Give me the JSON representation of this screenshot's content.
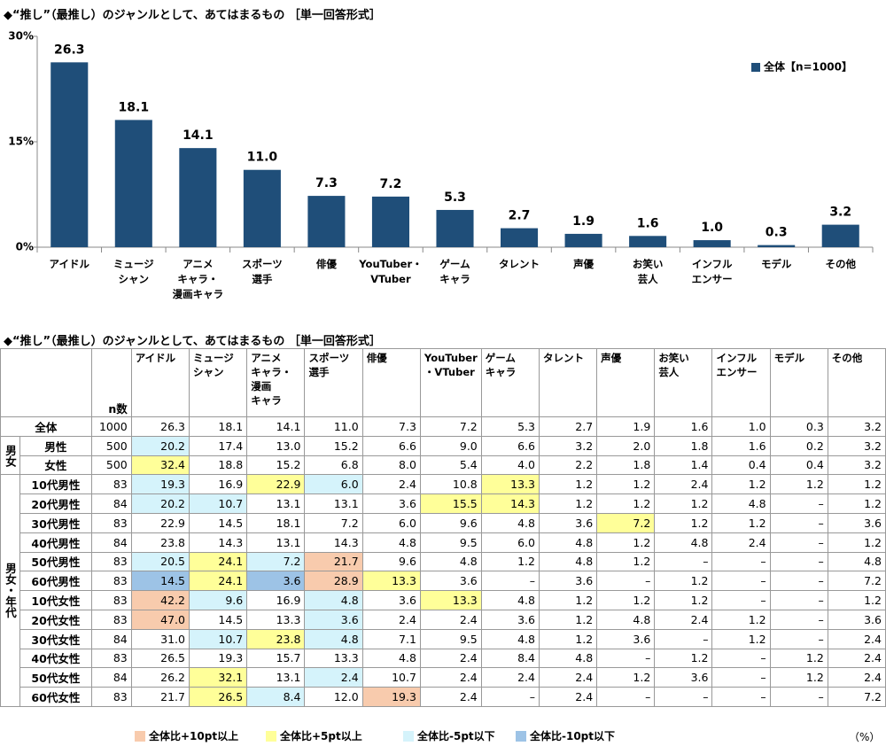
{
  "chart_data": {
    "type": "bar",
    "title": "◆“推し”（最推し）のジャンルとして、あてはまるもの ［単一回答形式］",
    "categories": [
      "アイドル",
      "ミュージ\nシャン",
      "アニメ\nキャラ・\n漫画キャラ",
      "スポーツ\n選手",
      "俳優",
      "YouTuber・\nVTuber",
      "ゲーム\nキャラ",
      "タレント",
      "声優",
      "お笑い\n芸人",
      "インフル\nエンサー",
      "モデル",
      "その他"
    ],
    "series": [
      {
        "name": "全体【n=1000】",
        "color": "#1f4e79",
        "values": [
          26.3,
          18.1,
          14.1,
          11.0,
          7.3,
          7.2,
          5.3,
          2.7,
          1.9,
          1.6,
          1.0,
          0.3,
          3.2
        ],
        "value_labels": [
          "26.3",
          "18.1",
          "14.1",
          "11.0",
          "7.3",
          "7.2",
          "5.3",
          "2.7",
          "1.9",
          "1.6",
          "1.0",
          "0.3",
          "3.2"
        ]
      }
    ],
    "ylim": [
      0,
      30
    ],
    "yticks": [
      {
        "value": 0,
        "label": "0%"
      },
      {
        "value": 15,
        "label": "15%"
      },
      {
        "value": 30,
        "label": "30%"
      }
    ],
    "legend": "upper right"
  },
  "table": {
    "title": "◆“推し”（最推し）のジャンルとして、あてはまるもの ［単一回答形式］",
    "header": {
      "n": "n数",
      "columns": [
        "アイドル",
        "ミュージ\nシャン",
        "アニメ\nキャラ・\n漫画\nキャラ",
        "スポーツ\n選手",
        "俳優",
        "YouTuber\n・VTuber",
        "ゲーム\nキャラ",
        "タレント",
        "声優",
        "お笑い\n芸人",
        "インフル\nエンサー",
        "モデル",
        "その他"
      ]
    },
    "total": {
      "label": "全体",
      "n": "1000",
      "values": [
        "26.3",
        "18.1",
        "14.1",
        "11.0",
        "7.3",
        "7.2",
        "5.3",
        "2.7",
        "1.9",
        "1.6",
        "1.0",
        "0.3",
        "3.2"
      ]
    },
    "groups": [
      {
        "label": "男女",
        "rows": [
          {
            "label": "男性",
            "n": "500",
            "values": [
              "20.2",
              "17.4",
              "13.0",
              "15.2",
              "6.6",
              "9.0",
              "6.6",
              "3.2",
              "2.0",
              "1.8",
              "1.6",
              "0.2",
              "3.2"
            ],
            "highlights": [
              2,
              null,
              null,
              null,
              null,
              null,
              null,
              null,
              null,
              null,
              null,
              null,
              null
            ]
          },
          {
            "label": "女性",
            "n": "500",
            "values": [
              "32.4",
              "18.8",
              "15.2",
              "6.8",
              "8.0",
              "5.4",
              "4.0",
              "2.2",
              "1.8",
              "1.4",
              "0.4",
              "0.4",
              "3.2"
            ],
            "highlights": [
              1,
              null,
              null,
              null,
              null,
              null,
              null,
              null,
              null,
              null,
              null,
              null,
              null
            ]
          }
        ]
      },
      {
        "label": "男女・年代",
        "rows": [
          {
            "label": "10代男性",
            "n": "83",
            "values": [
              "19.3",
              "16.9",
              "22.9",
              "6.0",
              "2.4",
              "10.8",
              "13.3",
              "1.2",
              "1.2",
              "2.4",
              "1.2",
              "1.2",
              "1.2"
            ],
            "highlights": [
              2,
              null,
              1,
              2,
              null,
              null,
              1,
              null,
              null,
              null,
              null,
              null,
              null
            ]
          },
          {
            "label": "20代男性",
            "n": "84",
            "values": [
              "20.2",
              "10.7",
              "13.1",
              "13.1",
              "3.6",
              "15.5",
              "14.3",
              "1.2",
              "1.2",
              "1.2",
              "4.8",
              "–",
              "1.2"
            ],
            "highlights": [
              2,
              2,
              null,
              null,
              null,
              1,
              1,
              null,
              null,
              null,
              null,
              null,
              null
            ]
          },
          {
            "label": "30代男性",
            "n": "83",
            "values": [
              "22.9",
              "14.5",
              "18.1",
              "7.2",
              "6.0",
              "9.6",
              "4.8",
              "3.6",
              "7.2",
              "1.2",
              "1.2",
              "–",
              "3.6"
            ],
            "highlights": [
              null,
              null,
              null,
              null,
              null,
              null,
              null,
              null,
              1,
              null,
              null,
              null,
              null
            ]
          },
          {
            "label": "40代男性",
            "n": "84",
            "values": [
              "23.8",
              "14.3",
              "13.1",
              "14.3",
              "4.8",
              "9.5",
              "6.0",
              "4.8",
              "1.2",
              "4.8",
              "2.4",
              "–",
              "1.2"
            ],
            "highlights": [
              null,
              null,
              null,
              null,
              null,
              null,
              null,
              null,
              null,
              null,
              null,
              null,
              null
            ]
          },
          {
            "label": "50代男性",
            "n": "83",
            "values": [
              "20.5",
              "24.1",
              "7.2",
              "21.7",
              "9.6",
              "4.8",
              "1.2",
              "4.8",
              "1.2",
              "–",
              "–",
              "–",
              "4.8"
            ],
            "highlights": [
              2,
              1,
              2,
              0,
              null,
              null,
              null,
              null,
              null,
              null,
              null,
              null,
              null
            ]
          },
          {
            "label": "60代男性",
            "n": "83",
            "values": [
              "14.5",
              "24.1",
              "3.6",
              "28.9",
              "13.3",
              "3.6",
              "–",
              "3.6",
              "–",
              "1.2",
              "–",
              "–",
              "7.2"
            ],
            "highlights": [
              3,
              1,
              3,
              0,
              1,
              null,
              null,
              null,
              null,
              null,
              null,
              null,
              null
            ]
          },
          {
            "label": "10代女性",
            "n": "83",
            "values": [
              "42.2",
              "9.6",
              "16.9",
              "4.8",
              "3.6",
              "13.3",
              "4.8",
              "1.2",
              "1.2",
              "1.2",
              "–",
              "–",
              "1.2"
            ],
            "highlights": [
              0,
              2,
              null,
              2,
              null,
              1,
              null,
              null,
              null,
              null,
              null,
              null,
              null
            ]
          },
          {
            "label": "20代女性",
            "n": "83",
            "values": [
              "47.0",
              "14.5",
              "13.3",
              "3.6",
              "2.4",
              "2.4",
              "3.6",
              "1.2",
              "4.8",
              "2.4",
              "1.2",
              "–",
              "3.6"
            ],
            "highlights": [
              0,
              null,
              null,
              2,
              null,
              null,
              null,
              null,
              null,
              null,
              null,
              null,
              null
            ]
          },
          {
            "label": "30代女性",
            "n": "84",
            "values": [
              "31.0",
              "10.7",
              "23.8",
              "4.8",
              "7.1",
              "9.5",
              "4.8",
              "1.2",
              "3.6",
              "–",
              "1.2",
              "–",
              "2.4"
            ],
            "highlights": [
              null,
              2,
              1,
              2,
              null,
              null,
              null,
              null,
              null,
              null,
              null,
              null,
              null
            ]
          },
          {
            "label": "40代女性",
            "n": "83",
            "values": [
              "26.5",
              "19.3",
              "15.7",
              "13.3",
              "4.8",
              "2.4",
              "8.4",
              "4.8",
              "–",
              "1.2",
              "–",
              "1.2",
              "2.4"
            ],
            "highlights": [
              null,
              null,
              null,
              null,
              null,
              null,
              null,
              null,
              null,
              null,
              null,
              null,
              null
            ]
          },
          {
            "label": "50代女性",
            "n": "84",
            "values": [
              "26.2",
              "32.1",
              "13.1",
              "2.4",
              "10.7",
              "2.4",
              "2.4",
              "2.4",
              "1.2",
              "3.6",
              "–",
              "1.2",
              "2.4"
            ],
            "highlights": [
              null,
              1,
              null,
              2,
              null,
              null,
              null,
              null,
              null,
              null,
              null,
              null,
              null
            ]
          },
          {
            "label": "60代女性",
            "n": "83",
            "values": [
              "21.7",
              "26.5",
              "8.4",
              "12.0",
              "19.3",
              "2.4",
              "–",
              "2.4",
              "–",
              "–",
              "–",
              "–",
              "7.2"
            ],
            "highlights": [
              null,
              1,
              2,
              null,
              0,
              null,
              null,
              null,
              null,
              null,
              null,
              null,
              null
            ]
          }
        ]
      }
    ],
    "legend": [
      {
        "label": "全体比+10pt以上",
        "color": "#f8cbad"
      },
      {
        "label": "全体比+5pt以上",
        "color": "#ffff99"
      },
      {
        "label": "全体比-5pt以下",
        "color": "#d5f3fb"
      },
      {
        "label": "全体比-10pt以下",
        "color": "#9dc3e6"
      }
    ],
    "unit": "（%）"
  }
}
